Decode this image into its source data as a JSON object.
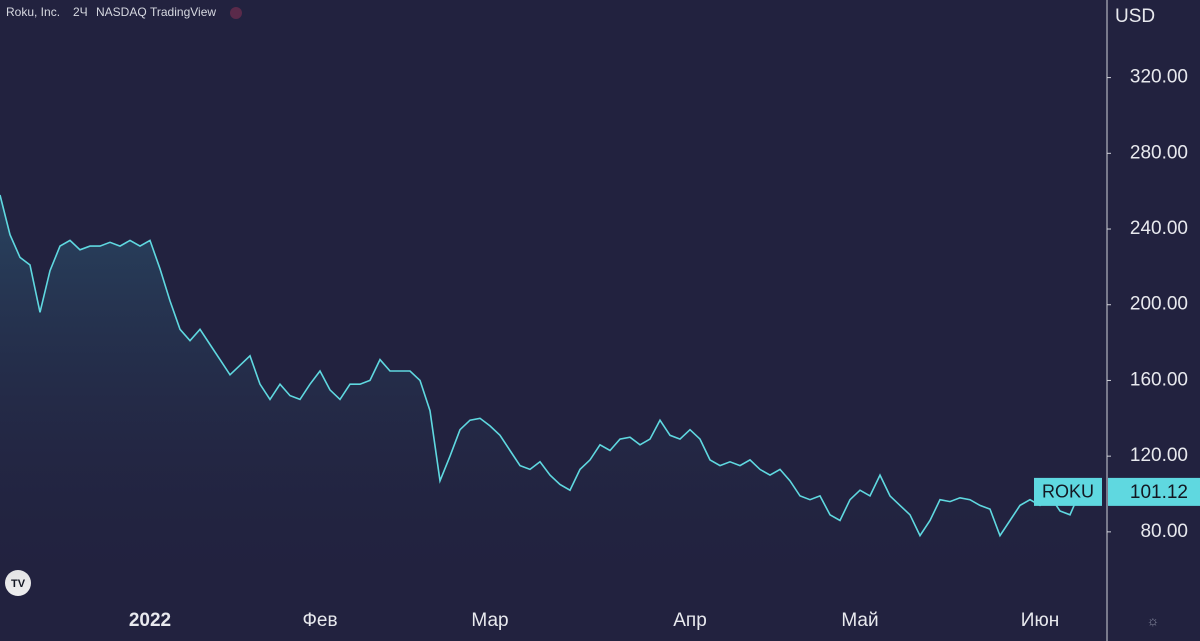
{
  "chart_data": {
    "type": "area",
    "title": "Roku, Inc.",
    "interval": "2Ч",
    "exchange": "NASDAQ",
    "source": "TradingView",
    "currency": "USD",
    "categories": [
      null,
      null,
      null,
      null,
      null,
      null,
      null,
      null,
      null,
      null,
      null,
      null,
      null,
      null,
      null,
      "2022",
      null,
      null,
      null,
      null,
      null,
      null,
      null,
      null,
      null,
      null,
      null,
      null,
      null,
      null,
      null,
      null,
      "Фев",
      null,
      null,
      null,
      null,
      null,
      null,
      null,
      null,
      null,
      null,
      null,
      null,
      null,
      null,
      null,
      null,
      "Мар",
      null,
      null,
      null,
      null,
      null,
      null,
      null,
      null,
      null,
      null,
      null,
      null,
      null,
      null,
      null,
      null,
      null,
      null,
      null,
      "Апр",
      null,
      null,
      null,
      null,
      null,
      null,
      null,
      null,
      null,
      null,
      null,
      null,
      null,
      null,
      null,
      null,
      "Май",
      null,
      null,
      null,
      null,
      null,
      null,
      null,
      null,
      null,
      null,
      null,
      null,
      null,
      null,
      null,
      null,
      null,
      "Июн",
      null,
      null,
      null,
      null
    ],
    "series": [
      {
        "name": "ROKU",
        "color": "#5fd8e0",
        "values": [
          258,
          237,
          225,
          221,
          196,
          218,
          231,
          234,
          229,
          231,
          231,
          233,
          231,
          234,
          231,
          234,
          219,
          202,
          187,
          181,
          187,
          179,
          171,
          163,
          168,
          173,
          158,
          150,
          158,
          152,
          150,
          158,
          165,
          155,
          150,
          158,
          158,
          160,
          171,
          165,
          165,
          165,
          160,
          144,
          107,
          120,
          134,
          139,
          140,
          136,
          131,
          123,
          115,
          113,
          117,
          110,
          105,
          102,
          113,
          118,
          126,
          123,
          129,
          130,
          126,
          129,
          139,
          131,
          129,
          134,
          129,
          118,
          115,
          117,
          115,
          118,
          113,
          110,
          113,
          107,
          99,
          97,
          99,
          89,
          86,
          97,
          102,
          99,
          110,
          99,
          94,
          89,
          78,
          86,
          97,
          96,
          98,
          97,
          94,
          92,
          78,
          86,
          94,
          97,
          94,
          99,
          91,
          89,
          101.12
        ]
      }
    ],
    "ylim": [
      44,
      361
    ],
    "yticks": [
      {
        "value": 80,
        "label": "80.00"
      },
      {
        "value": 120,
        "label": "120.00"
      },
      {
        "value": 160,
        "label": "160.00"
      },
      {
        "value": 200,
        "label": "200.00"
      },
      {
        "value": 240,
        "label": "240.00"
      },
      {
        "value": 280,
        "label": "280.00"
      },
      {
        "value": 320,
        "label": "320.00"
      }
    ],
    "grid": false
  }
}
